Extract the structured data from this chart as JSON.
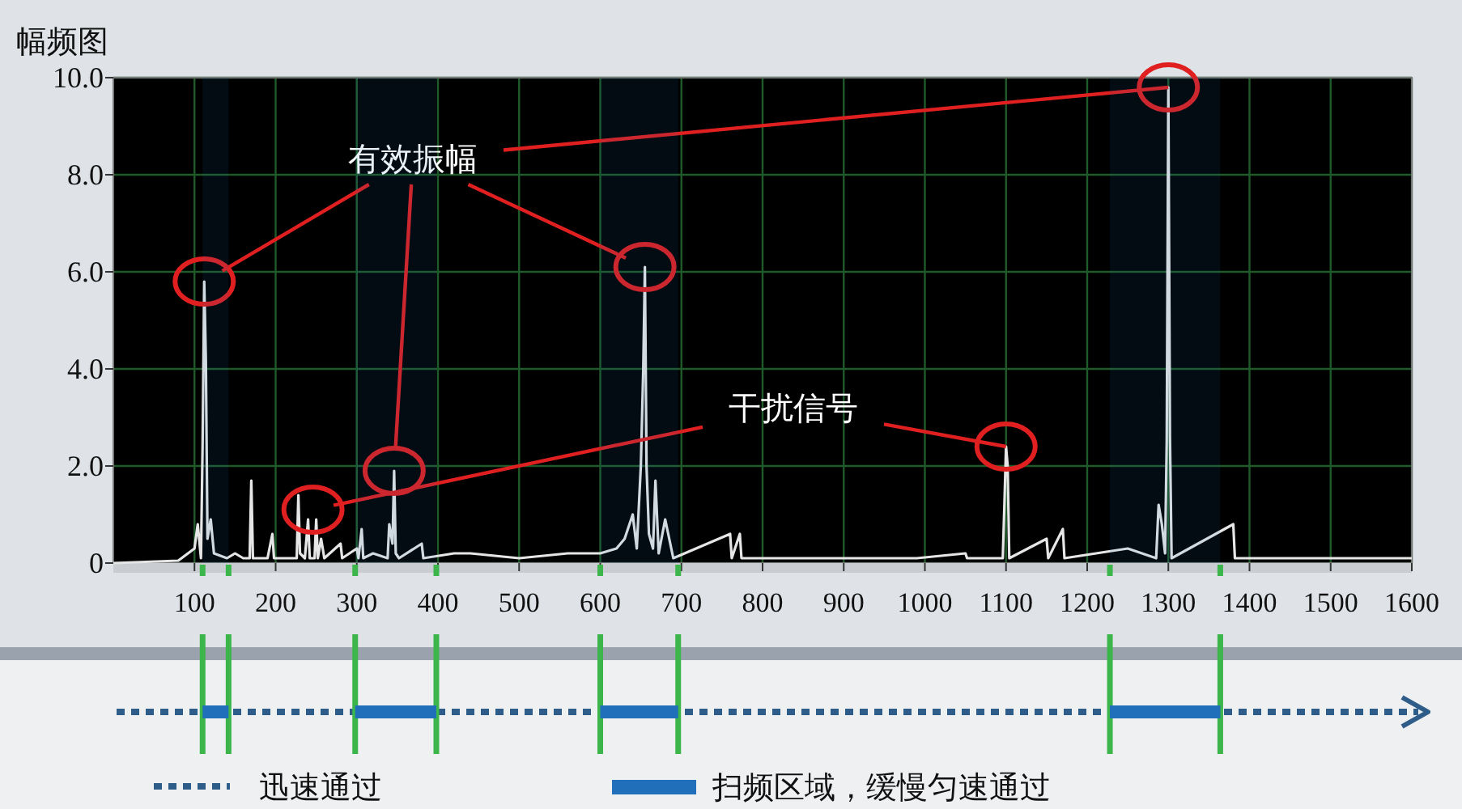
{
  "chart_data": {
    "type": "line",
    "title": "幅频图",
    "xlim": [
      0,
      1600
    ],
    "xticks": [
      100,
      200,
      300,
      400,
      500,
      600,
      700,
      800,
      900,
      1000,
      1100,
      1200,
      1300,
      1400,
      1500,
      1600
    ],
    "ylim": [
      0,
      10
    ],
    "yticks": [
      {
        "value": 0,
        "label": "0"
      },
      {
        "value": 2,
        "label": "2.0"
      },
      {
        "value": 4,
        "label": "4.0"
      },
      {
        "value": 6,
        "label": "6.0"
      },
      {
        "value": 8,
        "label": "8.0"
      },
      {
        "value": 10,
        "label": "10.0"
      }
    ],
    "grid": true,
    "x": [
      0,
      80,
      100,
      104,
      108,
      110,
      112,
      114,
      116,
      120,
      124,
      140,
      150,
      160,
      168,
      170,
      172,
      190,
      196,
      198,
      226,
      228,
      230,
      236,
      240,
      242,
      248,
      250,
      252,
      256,
      260,
      280,
      282,
      300,
      302,
      306,
      308,
      320,
      338,
      340,
      344,
      346,
      348,
      352,
      380,
      382,
      420,
      440,
      500,
      560,
      600,
      620,
      630,
      640,
      645,
      650,
      653,
      655,
      657,
      660,
      665,
      668,
      672,
      680,
      690,
      760,
      762,
      772,
      774,
      830,
      920,
      990,
      1050,
      1052,
      1096,
      1098,
      1100,
      1102,
      1104,
      1150,
      1152,
      1170,
      1172,
      1250,
      1285,
      1288,
      1292,
      1296,
      1298,
      1300,
      1302,
      1304,
      1380,
      1382,
      1420,
      1600
    ],
    "series": [
      {
        "type": "line",
        "color": "#e6e6e6",
        "values": [
          0,
          0.05,
          0.3,
          0.8,
          0.1,
          2.4,
          5.8,
          4.2,
          0.5,
          0.9,
          0.2,
          0.1,
          0.2,
          0.1,
          0.1,
          1.7,
          0.1,
          0.1,
          0.6,
          0.1,
          0.1,
          1.4,
          0.2,
          0.1,
          0.9,
          0.1,
          0.1,
          0.9,
          0.1,
          0.5,
          0.1,
          0.4,
          0.1,
          0.3,
          0.1,
          0.7,
          0.1,
          0.2,
          0.1,
          0.8,
          0.4,
          1.9,
          0.2,
          0.1,
          0.4,
          0.1,
          0.2,
          0.2,
          0.1,
          0.2,
          0.2,
          0.3,
          0.5,
          1.0,
          0.3,
          2.0,
          4.0,
          6.1,
          2.0,
          0.6,
          0.3,
          1.7,
          0.2,
          0.9,
          0.1,
          0.6,
          0.1,
          0.6,
          0.1,
          0.1,
          0.1,
          0.1,
          0.2,
          0.1,
          0.1,
          1.2,
          2.4,
          2.0,
          0.1,
          0.5,
          0.1,
          0.7,
          0.1,
          0.3,
          0.1,
          1.2,
          0.8,
          0.2,
          2.5,
          9.8,
          2.6,
          0.1,
          0.8,
          0.1,
          0.1,
          0.1
        ]
      },
      {
        "type": "scatter",
        "color": "#e02020",
        "marker": "circle",
        "x": [
          112,
          346,
          655,
          1300
        ],
        "values": [
          5.8,
          1.9,
          6.1,
          9.8
        ]
      },
      {
        "type": "scatter",
        "color": "#e02020",
        "marker": "circle",
        "x": [
          246,
          1100
        ],
        "values": [
          1.1,
          2.4
        ]
      }
    ],
    "bands": [
      {
        "axis": "x",
        "from": 110,
        "to": 142,
        "color": "#1f6fba"
      },
      {
        "axis": "x",
        "from": 298,
        "to": 398,
        "color": "#1f6fba"
      },
      {
        "axis": "x",
        "from": 600,
        "to": 696,
        "color": "#1f6fba"
      },
      {
        "axis": "x",
        "from": 1228,
        "to": 1364,
        "color": "#1f6fba"
      }
    ],
    "annotations": [
      {
        "text": "有效振幅",
        "x": 1300,
        "y": 9.8
      },
      {
        "text": "干扰信号",
        "x": 1100,
        "y": 2.4
      },
      "迅速通过",
      "扫频区域，缓慢匀速通过"
    ]
  }
}
